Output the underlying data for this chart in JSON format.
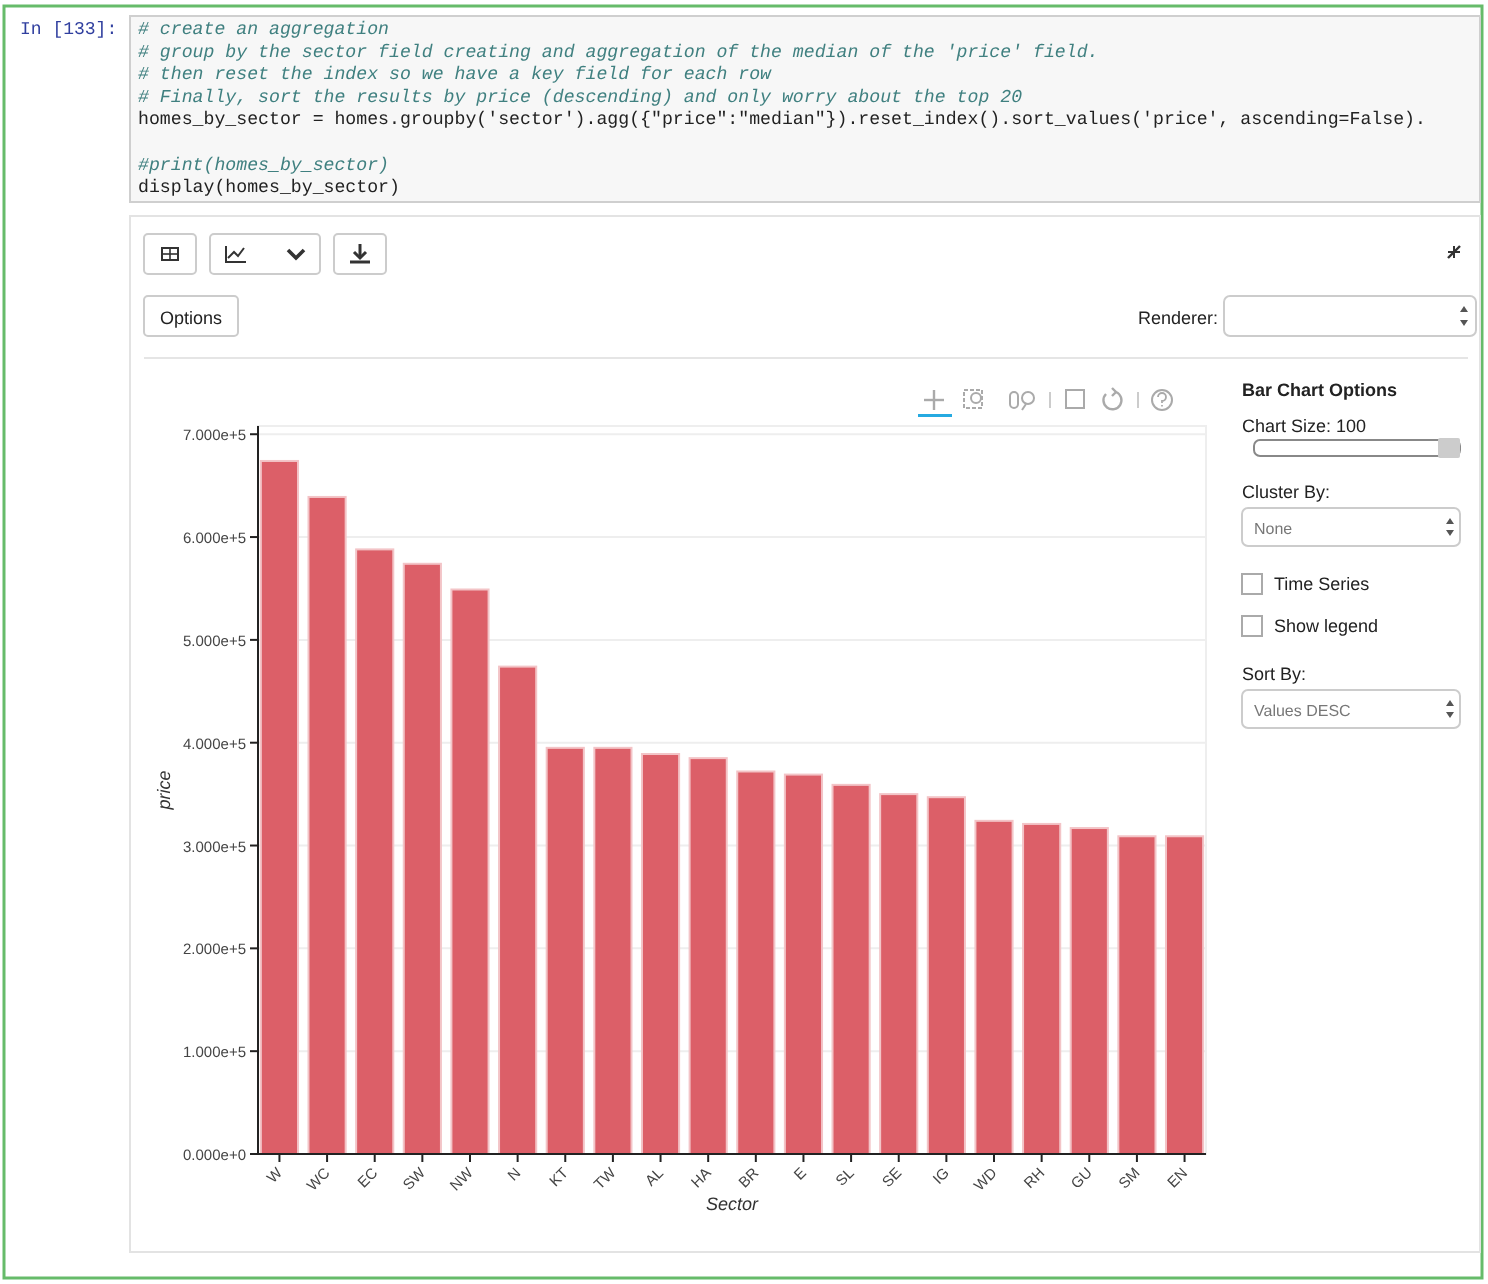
{
  "chart_data": {
    "type": "bar",
    "xlabel": "Sector",
    "ylabel": "price",
    "categories": [
      "W",
      "WC",
      "EC",
      "SW",
      "NW",
      "N",
      "KT",
      "TW",
      "AL",
      "HA",
      "BR",
      "E",
      "SL",
      "SE",
      "IG",
      "WD",
      "RH",
      "GU",
      "SM",
      "EN"
    ],
    "values": [
      674000,
      639000,
      588000,
      574000,
      549000,
      474000,
      395000,
      395000,
      389000,
      385000,
      372000,
      369000,
      359000,
      350000,
      347000,
      324000,
      321000,
      317000,
      309000,
      309000
    ],
    "color": "#dc5f68",
    "ylim": [
      0,
      708000
    ],
    "yticks": [
      {
        "value": 0,
        "label": "0.000e+0"
      },
      {
        "value": 100000,
        "label": "1.000e+5"
      },
      {
        "value": 200000,
        "label": "2.000e+5"
      },
      {
        "value": 300000,
        "label": "3.000e+5"
      },
      {
        "value": 400000,
        "label": "4.000e+5"
      },
      {
        "value": 500000,
        "label": "5.000e+5"
      },
      {
        "value": 600000,
        "label": "6.000e+5"
      },
      {
        "value": 700000,
        "label": "7.000e+5"
      }
    ],
    "grid": "y",
    "annotations": [
      "In [133]:",
      "# create an aggregation",
      "# group by the sector field creating and aggregation of the median of the 'price' field.",
      "# then reset the index so we have a key field for each row",
      "# Finally, sort the results by price (descending) and only worry about the top 20",
      "homes_by_sector = homes.groupby('sector').agg({\"price\":\"median\"}).reset_index().sort_values('price', ascending=False).",
      "#print(homes_by_sector)",
      "display(homes_by_sector)",
      "Options",
      "Renderer:",
      "Bar Chart Options",
      "Chart Size: 100",
      "Cluster By:",
      "None",
      "Time Series",
      "Show legend",
      "Sort By:",
      "Values DESC"
    ]
  }
}
